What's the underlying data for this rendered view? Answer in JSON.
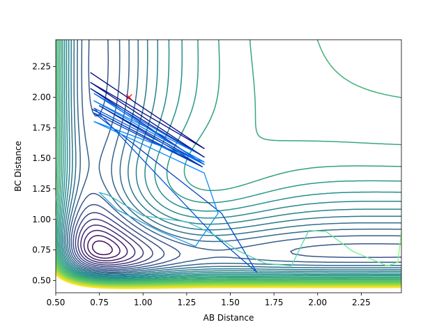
{
  "chart_data": {
    "type": "line",
    "subtype": "contour-with-trajectory",
    "title": "",
    "xlabel": "AB Distance",
    "ylabel": "BC Distance",
    "xlim": [
      0.5,
      2.48
    ],
    "ylim": [
      0.4,
      2.47
    ],
    "xticks": [
      0.5,
      0.75,
      1.0,
      1.25,
      1.5,
      1.75,
      2.0,
      2.25
    ],
    "xtick_labels": [
      "0.50",
      "0.75",
      "1.00",
      "1.25",
      "1.50",
      "1.75",
      "2.00",
      "2.25"
    ],
    "yticks": [
      0.5,
      0.75,
      1.0,
      1.25,
      1.5,
      1.75,
      2.0,
      2.25
    ],
    "ytick_labels": [
      "0.50",
      "0.75",
      "1.00",
      "1.25",
      "1.50",
      "1.75",
      "2.00",
      "2.25"
    ],
    "grid": false,
    "legend": "none",
    "colormap": [
      "#440154",
      "#3b528b",
      "#21918c",
      "#5ec962",
      "#fde725"
    ],
    "surface": {
      "minimum": [
        0.93,
        1.02
      ],
      "valley_floor": 0.48,
      "levels_count": 30
    },
    "marker": {
      "x": 0.92,
      "y": 2.0,
      "symbol": "x",
      "color": "#ff0000"
    },
    "trajectory": {
      "color_start": "#00007f",
      "color_mid": "#0080ff",
      "color_end": "#7fff7f",
      "points": [
        [
          0.7,
          2.2
        ],
        [
          1.35,
          1.58
        ],
        [
          0.7,
          2.12
        ],
        [
          1.35,
          1.51
        ],
        [
          0.7,
          2.07
        ],
        [
          1.35,
          1.45
        ],
        [
          0.75,
          1.93
        ],
        [
          1.33,
          1.44
        ],
        [
          0.71,
          1.9
        ],
        [
          1.34,
          1.43
        ],
        [
          0.72,
          1.87
        ],
        [
          1.45,
          1.05
        ],
        [
          1.65,
          0.57
        ],
        [
          1.4,
          0.88
        ],
        [
          0.72,
          1.91
        ],
        [
          1.35,
          1.45
        ],
        [
          0.72,
          2.03
        ],
        [
          1.3,
          1.55
        ],
        [
          0.72,
          1.97
        ],
        [
          1.35,
          1.47
        ],
        [
          0.72,
          1.8
        ],
        [
          1.35,
          1.38
        ],
        [
          1.43,
          1.05
        ],
        [
          1.3,
          0.78
        ],
        [
          1.1,
          0.9
        ],
        [
          0.85,
          1.08
        ],
        [
          0.75,
          1.22
        ],
        [
          0.8,
          1.2
        ],
        [
          1.0,
          1.03
        ],
        [
          1.25,
          0.98
        ],
        [
          1.4,
          0.88
        ],
        [
          1.55,
          0.74
        ],
        [
          1.7,
          0.64
        ],
        [
          1.85,
          0.62
        ],
        [
          1.95,
          0.91
        ],
        [
          2.05,
          0.9
        ],
        [
          2.2,
          0.74
        ],
        [
          2.4,
          0.62
        ],
        [
          2.46,
          0.65
        ],
        [
          2.48,
          0.9
        ]
      ]
    }
  }
}
